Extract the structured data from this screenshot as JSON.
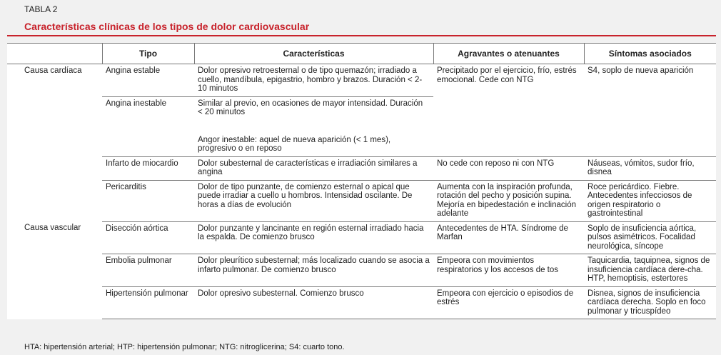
{
  "header": {
    "label": "TABLA 2",
    "title": "Características clínicas de los tipos de dolor cardiovascular"
  },
  "table": {
    "columns": [
      "Tipo",
      "Características",
      "Agravantes o atenuantes",
      "Síntomas asociados"
    ],
    "groups": [
      {
        "cause": "Causa cardíaca",
        "rows": [
          {
            "tipo": "Angina estable",
            "caracteristicas": [
              "Dolor opresivo retroesternal o de tipo quemazón; irradiado a cuello, mandíbula, epigastrio, hombro y brazos. Duración < 2-10 minutos"
            ],
            "agravantes": "Precipitado por el ejercicio, frío, estrés emocional. Cede con NTG",
            "sintomas": "S4, soplo de nueva aparición"
          },
          {
            "tipo": "Angina inestable",
            "caracteristicas": [
              "Similar al previo, en ocasiones de mayor intensidad. Duración < 20 minutos",
              "Angor inestable: aquel de nueva aparición (< 1 mes), progresivo o en reposo"
            ]
          },
          {
            "tipo": "Infarto de miocardio",
            "caracteristicas": [
              "Dolor subesternal de características e irradiación similares a angina"
            ],
            "agravantes": "No cede con reposo ni con NTG",
            "sintomas": "Náuseas, vómitos, sudor frío, disnea"
          },
          {
            "tipo": "Pericarditis",
            "caracteristicas": [
              "Dolor de tipo punzante, de comienzo esternal o apical que puede irradiar a cuello u hombros. Intensidad oscilante. De horas a días de evolución"
            ],
            "agravantes": "Aumenta con la inspiración profunda, rotación del pecho y posición supina. Mejoría en bipedestación e inclinación adelante",
            "sintomas": "Roce pericárdico. Fiebre. Antecedentes infecciosos de origen respiratorio o gastrointestinal"
          }
        ]
      },
      {
        "cause": "Causa vascular",
        "rows": [
          {
            "tipo": "Disección aórtica",
            "caracteristicas": [
              "Dolor punzante y lancinante en región esternal irradiado hacia la espalda. De comienzo brusco"
            ],
            "agravantes": "Antecedentes de HTA. Síndrome de Marfan",
            "sintomas": "Soplo de insuficiencia aórtica, pulsos asimétricos. Focalidad neurológica, síncope"
          },
          {
            "tipo": "Embolia pulmonar",
            "caracteristicas": [
              "Dolor pleurítico subesternal; más localizado cuando se asocia a infarto pulmonar. De comienzo brusco"
            ],
            "agravantes": "Empeora con movimientos respiratorios y los accesos de tos",
            "sintomas": "Taquicardia, taquipnea, signos de insuficiencia cardíaca dere-cha. HTP, hemoptisis, estertores"
          },
          {
            "tipo": "Hipertensión pulmonar",
            "caracteristicas": [
              "Dolor opresivo subesternal. Comienzo brusco"
            ],
            "agravantes": "Empeora con ejercicio o episodios de estrés",
            "sintomas": "Disnea, signos de insuficiencia cardíaca derecha. Soplo en foco pulmonar y tricuspídeo"
          }
        ]
      }
    ]
  },
  "footnote": "HTA: hipertensión arterial; HTP: hipertensión pulmonar; NTG: nitroglicerina; S4: cuarto tono."
}
